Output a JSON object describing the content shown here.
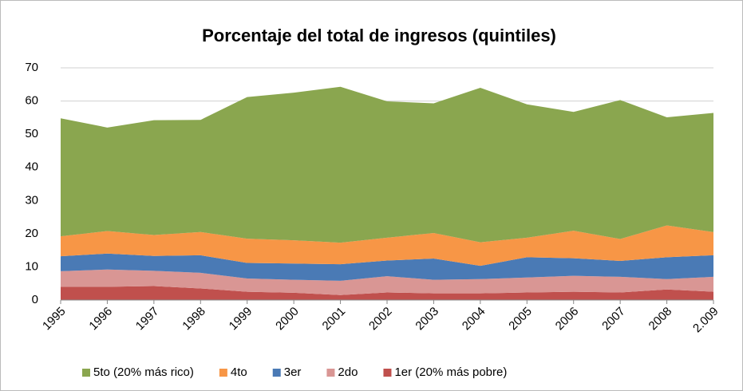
{
  "chart_data": {
    "type": "stacked-area",
    "title": "Porcentaje del total de ingresos (quintiles)",
    "categories": [
      "1995",
      "1996",
      "1997",
      "1998",
      "1999",
      "2000",
      "2001",
      "2002",
      "2003",
      "2004",
      "2005",
      "2006",
      "2007",
      "2008",
      "2.009"
    ],
    "series": [
      {
        "name": "5to (20% más rico)",
        "color": "#8aa64f",
        "values": [
          35.6,
          31.2,
          34.6,
          33.8,
          42.7,
          44.5,
          47.0,
          41.1,
          39.1,
          46.6,
          40.2,
          35.8,
          41.9,
          32.6,
          35.9
        ]
      },
      {
        "name": "4to",
        "color": "#f79646",
        "values": [
          6.0,
          6.8,
          6.3,
          7.0,
          7.3,
          7.0,
          6.5,
          6.9,
          7.7,
          7.1,
          5.9,
          8.3,
          6.6,
          9.6,
          7.0
        ]
      },
      {
        "name": "3er",
        "color": "#4a7ab5",
        "values": [
          4.5,
          4.8,
          4.5,
          5.3,
          4.7,
          4.9,
          5.0,
          4.7,
          6.4,
          4.0,
          6.1,
          5.3,
          4.8,
          6.6,
          6.5
        ]
      },
      {
        "name": "2do",
        "color": "#d99694",
        "values": [
          4.7,
          5.2,
          4.6,
          4.7,
          4.0,
          3.9,
          4.3,
          4.9,
          4.1,
          4.3,
          4.5,
          4.8,
          4.7,
          3.1,
          4.5
        ]
      },
      {
        "name": "1er (20% más pobre)",
        "color": "#c0504d",
        "values": [
          4.0,
          4.0,
          4.2,
          3.5,
          2.5,
          2.2,
          1.5,
          2.3,
          2.0,
          2.0,
          2.3,
          2.5,
          2.3,
          3.2,
          2.5
        ]
      }
    ],
    "ylim": [
      0,
      70
    ],
    "yticks": [
      0,
      10,
      20,
      30,
      40,
      50,
      60,
      70
    ],
    "grid": true,
    "legend": "bottom"
  }
}
